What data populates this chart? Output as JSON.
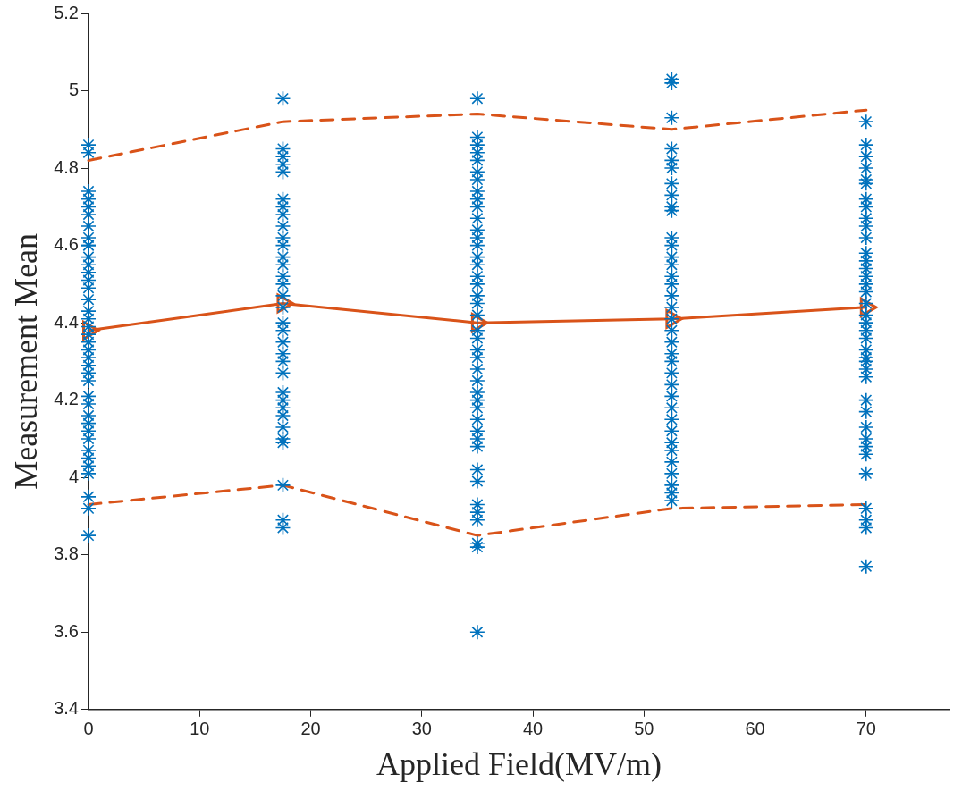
{
  "chart_data": {
    "type": "scatter",
    "xlabel": "Applied Field(MV/m)",
    "ylabel": "Measurement Mean",
    "xlim": [
      0,
      77.5
    ],
    "ylim": [
      3.4,
      5.2
    ],
    "xticks": [
      0,
      10,
      20,
      30,
      40,
      50,
      60,
      70
    ],
    "yticks": [
      3.4,
      3.6,
      3.8,
      4,
      4.2,
      4.4,
      4.6,
      4.8,
      5,
      5.2
    ],
    "grid": false,
    "legend": false,
    "series": [
      {
        "marker": "cross",
        "color": "#0072bd",
        "x": [
          0,
          0,
          0,
          0,
          0,
          0,
          0,
          0,
          0,
          0,
          0,
          0,
          0,
          0,
          0,
          0,
          0,
          0,
          0,
          0,
          0,
          0,
          0,
          0,
          0,
          0,
          0,
          0,
          0,
          0,
          0,
          0,
          0,
          0,
          0,
          0,
          0,
          0,
          0
        ],
        "values": [
          4.86,
          4.84,
          4.74,
          4.72,
          4.7,
          4.68,
          4.65,
          4.62,
          4.6,
          4.57,
          4.55,
          4.53,
          4.51,
          4.49,
          4.46,
          4.43,
          4.41,
          4.39,
          4.37,
          4.35,
          4.33,
          4.31,
          4.29,
          4.27,
          4.25,
          4.21,
          4.19,
          4.16,
          4.14,
          4.12,
          4.1,
          4.07,
          4.05,
          4.03,
          4.01,
          3.95,
          3.92,
          3.85,
          4.6
        ]
      },
      {
        "marker": "cross",
        "color": "#0072bd",
        "x": [
          17.5,
          17.5,
          17.5,
          17.5,
          17.5,
          17.5,
          17.5,
          17.5,
          17.5,
          17.5,
          17.5,
          17.5,
          17.5,
          17.5,
          17.5,
          17.5,
          17.5,
          17.5,
          17.5,
          17.5,
          17.5,
          17.5,
          17.5,
          17.5,
          17.5,
          17.5,
          17.5,
          17.5,
          17.5,
          17.5,
          17.5,
          17.5,
          17.5
        ],
        "values": [
          4.98,
          4.85,
          4.83,
          4.81,
          4.79,
          4.72,
          4.7,
          4.68,
          4.65,
          4.62,
          4.6,
          4.57,
          4.55,
          4.52,
          4.5,
          4.47,
          4.44,
          4.4,
          4.38,
          4.35,
          4.32,
          4.3,
          4.27,
          4.22,
          4.2,
          4.18,
          4.16,
          4.13,
          4.1,
          4.09,
          3.98,
          3.89,
          3.87
        ]
      },
      {
        "marker": "cross",
        "color": "#0072bd",
        "x": [
          35,
          35,
          35,
          35,
          35,
          35,
          35,
          35,
          35,
          35,
          35,
          35,
          35,
          35,
          35,
          35,
          35,
          35,
          35,
          35,
          35,
          35,
          35,
          35,
          35,
          35,
          35,
          35,
          35,
          35,
          35,
          35,
          35,
          35,
          35,
          35,
          35,
          35,
          35,
          35,
          35,
          35
        ],
        "values": [
          4.98,
          4.88,
          4.86,
          4.84,
          4.82,
          4.79,
          4.77,
          4.74,
          4.72,
          4.7,
          4.67,
          4.64,
          4.62,
          4.6,
          4.57,
          4.55,
          4.52,
          4.5,
          4.47,
          4.45,
          4.42,
          4.38,
          4.36,
          4.33,
          4.31,
          4.28,
          4.25,
          4.22,
          4.2,
          4.18,
          4.15,
          4.12,
          4.1,
          4.02,
          3.99,
          3.93,
          3.91,
          3.89,
          3.83,
          3.82,
          3.6,
          4.08
        ]
      },
      {
        "marker": "cross",
        "color": "#0072bd",
        "x": [
          52.5,
          52.5,
          52.5,
          52.5,
          52.5,
          52.5,
          52.5,
          52.5,
          52.5,
          52.5,
          52.5,
          52.5,
          52.5,
          52.5,
          52.5,
          52.5,
          52.5,
          52.5,
          52.5,
          52.5,
          52.5,
          52.5,
          52.5,
          52.5,
          52.5,
          52.5,
          52.5,
          52.5,
          52.5,
          52.5,
          52.5,
          52.5,
          52.5,
          52.5,
          52.5,
          52.5
        ],
        "values": [
          5.03,
          5.02,
          4.93,
          4.85,
          4.82,
          4.8,
          4.76,
          4.73,
          4.7,
          4.69,
          4.62,
          4.6,
          4.57,
          4.55,
          4.52,
          4.5,
          4.47,
          4.44,
          4.41,
          4.38,
          4.35,
          4.32,
          4.3,
          4.27,
          4.24,
          4.21,
          4.18,
          4.15,
          4.12,
          4.09,
          4.07,
          4.04,
          4.01,
          3.98,
          3.96,
          3.94
        ]
      },
      {
        "marker": "cross",
        "color": "#0072bd",
        "x": [
          70,
          70,
          70,
          70,
          70,
          70,
          70,
          70,
          70,
          70,
          70,
          70,
          70,
          70,
          70,
          70,
          70,
          70,
          70,
          70,
          70,
          70,
          70,
          70,
          70,
          70,
          70,
          70,
          70,
          70,
          70,
          70,
          70,
          70,
          70,
          70,
          70,
          70
        ],
        "values": [
          4.92,
          4.86,
          4.83,
          4.8,
          4.77,
          4.76,
          4.72,
          4.7,
          4.67,
          4.65,
          4.62,
          4.58,
          4.56,
          4.54,
          4.52,
          4.5,
          4.48,
          4.45,
          4.42,
          4.4,
          4.38,
          4.36,
          4.33,
          4.31,
          4.3,
          4.28,
          4.26,
          4.2,
          4.17,
          4.13,
          4.1,
          4.08,
          4.06,
          4.01,
          3.92,
          3.89,
          3.87,
          3.77
        ]
      },
      {
        "type": "line",
        "marker": "triangle",
        "line_style": "solid",
        "color": "#d95319",
        "x": [
          0,
          17.5,
          35,
          52.5,
          70
        ],
        "values": [
          4.38,
          4.45,
          4.4,
          4.41,
          4.44
        ]
      },
      {
        "type": "line",
        "marker": "none",
        "line_style": "dashed",
        "color": "#d95319",
        "x": [
          0,
          17.5,
          35,
          52.5,
          70
        ],
        "values": [
          4.82,
          4.92,
          4.94,
          4.9,
          4.95
        ]
      },
      {
        "type": "line",
        "marker": "none",
        "line_style": "dashed",
        "color": "#d95319",
        "x": [
          0,
          17.5,
          35,
          52.5,
          70
        ],
        "values": [
          3.93,
          3.98,
          3.85,
          3.92,
          3.93
        ]
      }
    ]
  }
}
